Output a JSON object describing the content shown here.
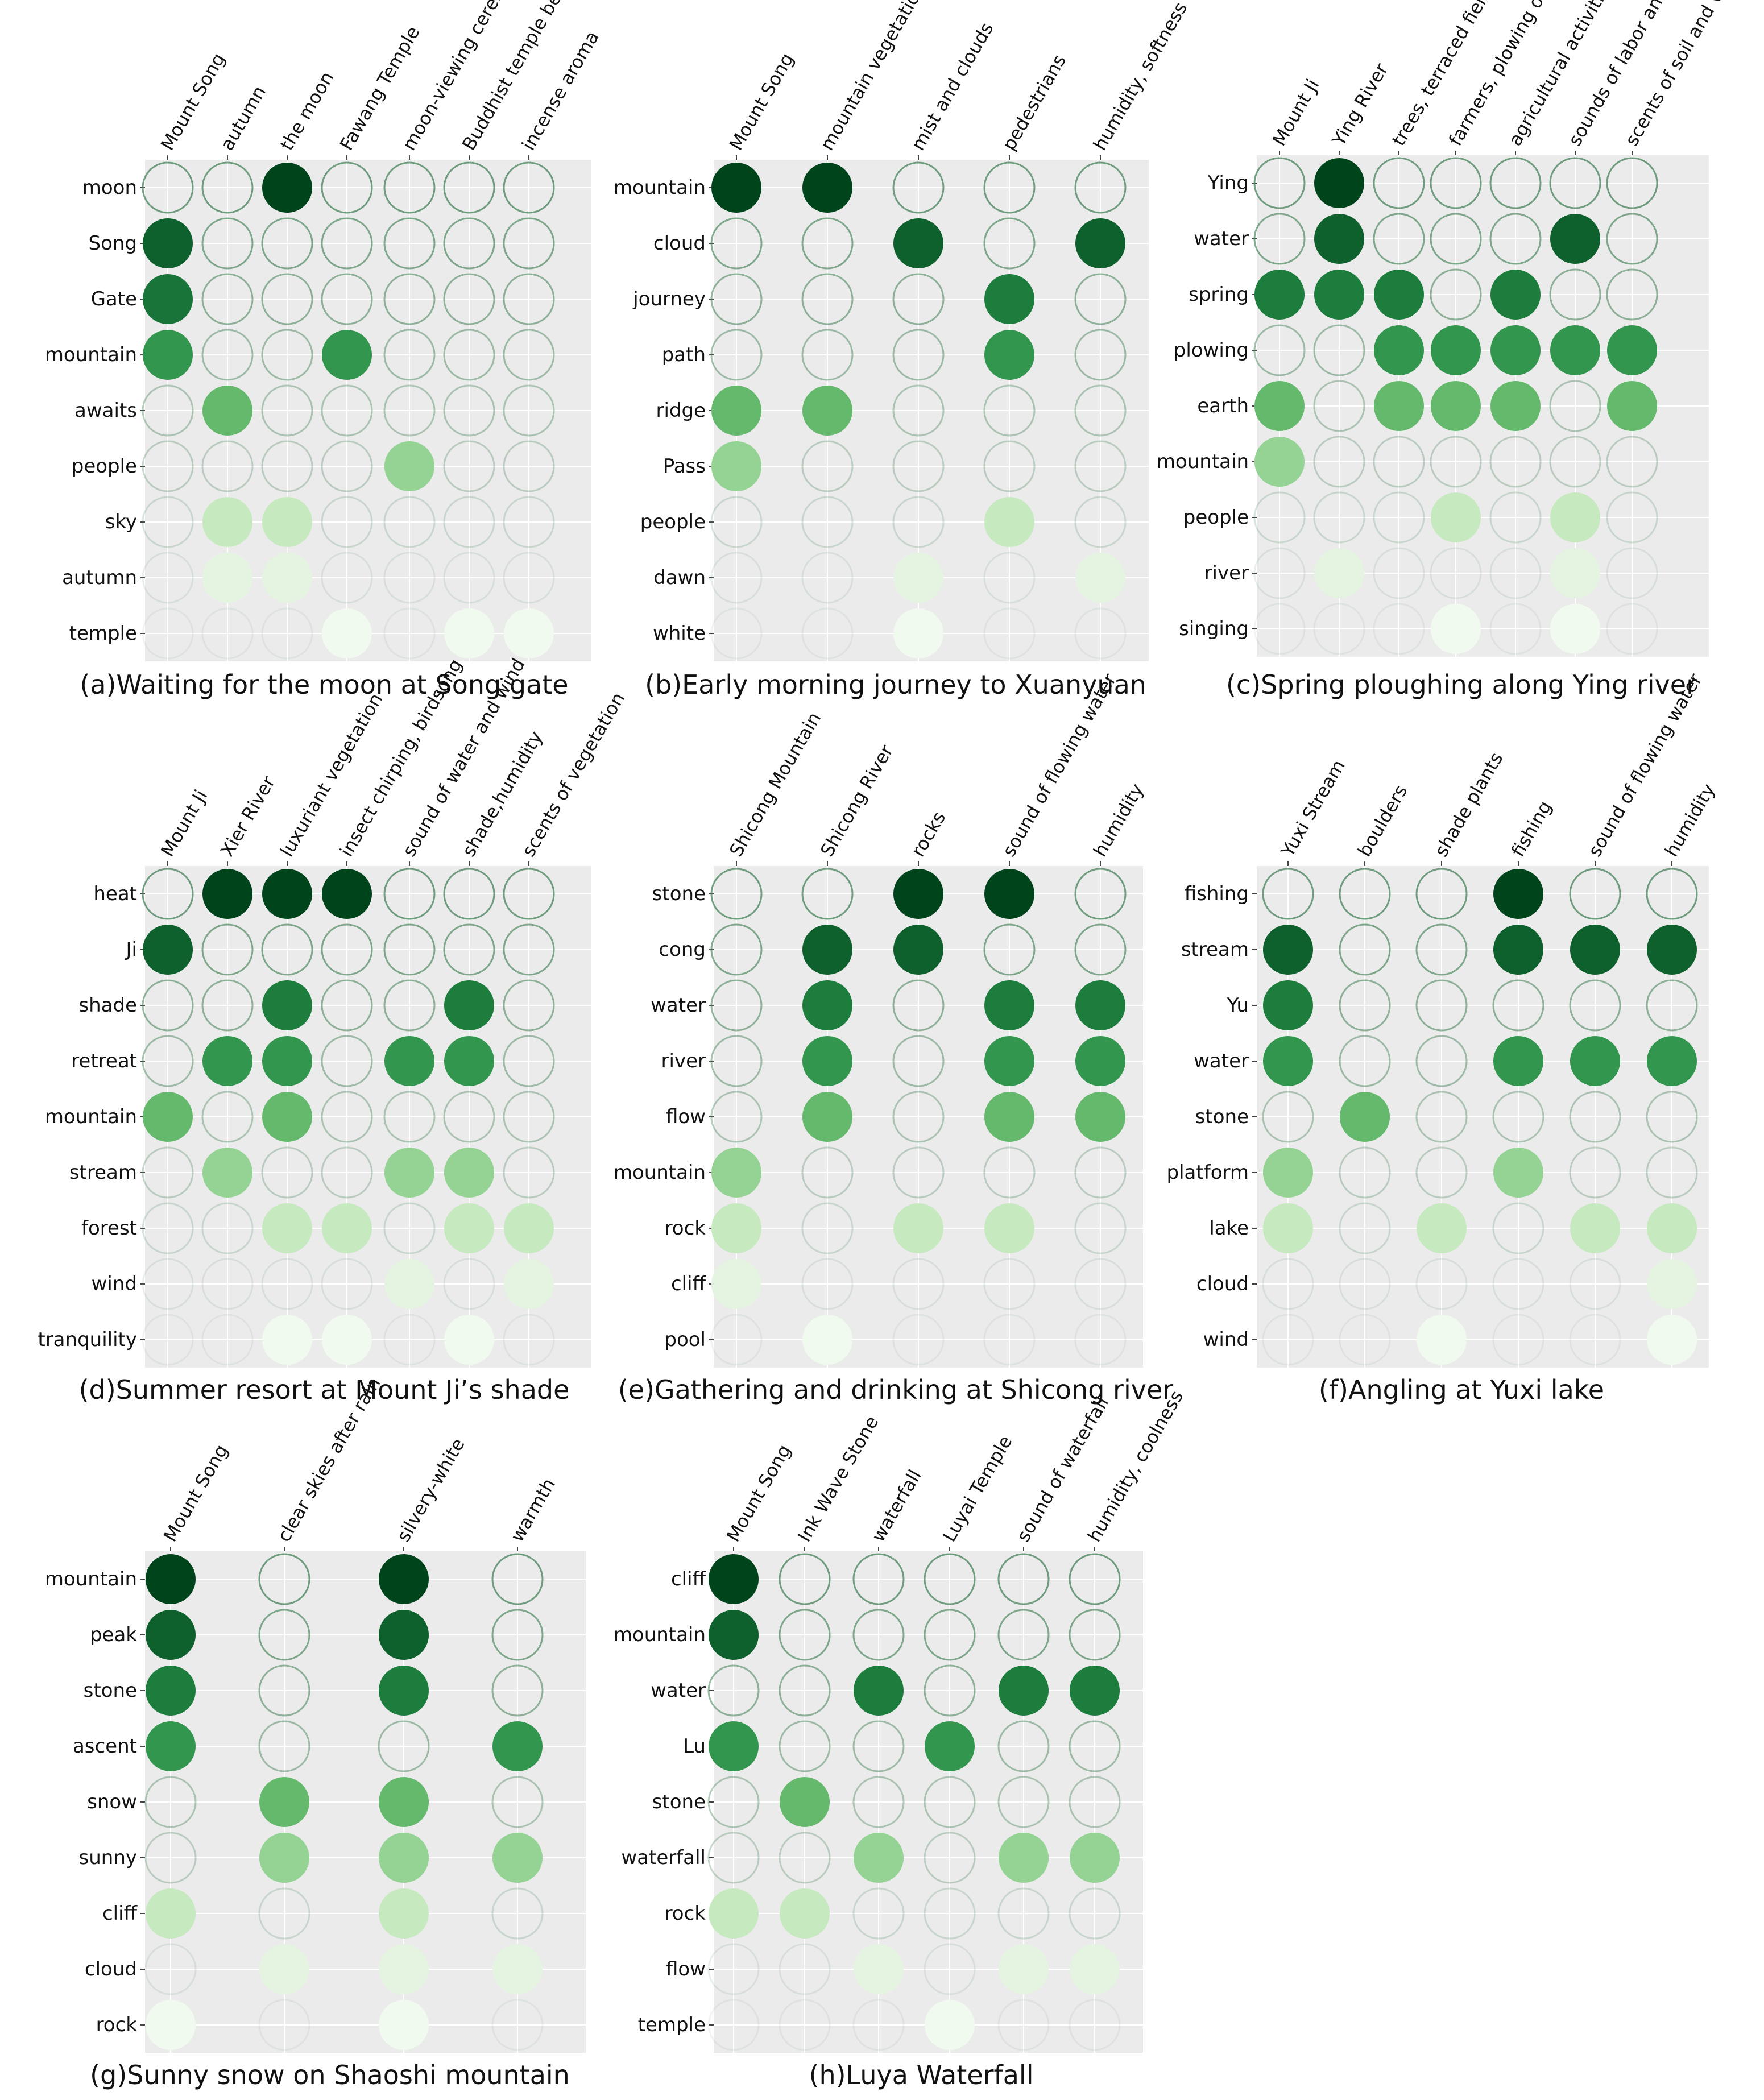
{
  "chart_data": [
    {
      "type": "heatmap",
      "title": "(a)Waiting for the moon at Song gate",
      "columns": [
        "Mount Song",
        "autumn",
        "the moon",
        "Fawang Temple",
        "moon-viewing ceremony",
        "Buddhist temple bell",
        "incense aroma"
      ],
      "rows": [
        "moon",
        "Song",
        "Gate",
        "mountain",
        "awaits",
        "people",
        "sky",
        "autumn",
        "temple"
      ],
      "values": [
        [
          0,
          0,
          1,
          0,
          0,
          0,
          0
        ],
        [
          0.9,
          0,
          0,
          0,
          0,
          0,
          0
        ],
        [
          0.83,
          0,
          0,
          0,
          0,
          0,
          0
        ],
        [
          0.7,
          0,
          0,
          0.7,
          0,
          0,
          0
        ],
        [
          0,
          0.55,
          0,
          0,
          0,
          0,
          0
        ],
        [
          0,
          0,
          0,
          0,
          0.4,
          0,
          0
        ],
        [
          0,
          0.25,
          0.25,
          0,
          0,
          0,
          0
        ],
        [
          0,
          0.1,
          0.1,
          0,
          0,
          0,
          0
        ],
        [
          0,
          0,
          0,
          0.03,
          0,
          0.03,
          0.03
        ]
      ]
    },
    {
      "type": "heatmap",
      "title": "(b)Early morning journey to Xuanyuan",
      "columns": [
        "Mount Song",
        "mountain vegetation",
        "mist and clouds",
        "pedestrians",
        "humidity, softness"
      ],
      "rows": [
        "mountain",
        "cloud",
        "journey",
        "path",
        "ridge",
        "Pass",
        "people",
        "dawn",
        "white"
      ],
      "values": [
        [
          1,
          1,
          0,
          0,
          0
        ],
        [
          0,
          0,
          0.9,
          0,
          0.9
        ],
        [
          0,
          0,
          0,
          0.8,
          0
        ],
        [
          0,
          0,
          0,
          0.7,
          0
        ],
        [
          0.55,
          0.55,
          0,
          0,
          0
        ],
        [
          0.4,
          0,
          0,
          0,
          0
        ],
        [
          0,
          0,
          0,
          0.25,
          0
        ],
        [
          0,
          0,
          0.1,
          0,
          0.1
        ],
        [
          0,
          0,
          0.03,
          0,
          0
        ]
      ]
    },
    {
      "type": "heatmap",
      "title": "(c)Spring ploughing along Ying river",
      "columns": [
        "Mount Ji",
        "Ying River",
        "trees, terraced fields",
        "farmers, plowing oxen",
        "agricultural activities",
        "sounds of labor and water",
        "scents of soil and vegetation"
      ],
      "rows": [
        "Ying",
        "water",
        "spring",
        "plowing",
        "earth",
        "mountain",
        "people",
        "river",
        "singing"
      ],
      "values": [
        [
          0,
          1,
          0,
          0,
          0,
          0,
          0
        ],
        [
          0,
          0.9,
          0,
          0,
          0,
          0.9,
          0
        ],
        [
          0.8,
          0.8,
          0.8,
          0,
          0.8,
          0,
          0
        ],
        [
          0,
          0,
          0.7,
          0.7,
          0.7,
          0.7,
          0.7
        ],
        [
          0.55,
          0,
          0.55,
          0.55,
          0.55,
          0,
          0.55
        ],
        [
          0.4,
          0,
          0,
          0,
          0,
          0,
          0
        ],
        [
          0,
          0,
          0,
          0.25,
          0,
          0.25,
          0
        ],
        [
          0,
          0.1,
          0,
          0,
          0,
          0.1,
          0
        ],
        [
          0,
          0,
          0,
          0.03,
          0,
          0.03,
          0
        ]
      ]
    },
    {
      "type": "heatmap",
      "title": "(d)Summer resort at Mount Ji’s shade",
      "columns": [
        "Mount Ji",
        "Xier River",
        "luxuriant vegetation",
        "insect chirping, birdsong",
        "sound of water and wind",
        "shade,humidity",
        "scents of vegetation"
      ],
      "rows": [
        "heat",
        "Ji",
        "shade",
        "retreat",
        "mountain",
        "stream",
        "forest",
        "wind",
        "tranquility"
      ],
      "values": [
        [
          0,
          1,
          1,
          1,
          0,
          0,
          0
        ],
        [
          0.9,
          0,
          0,
          0,
          0,
          0,
          0
        ],
        [
          0,
          0,
          0.8,
          0,
          0,
          0.8,
          0
        ],
        [
          0,
          0.7,
          0.7,
          0,
          0.7,
          0.7,
          0
        ],
        [
          0.55,
          0,
          0.55,
          0,
          0,
          0,
          0
        ],
        [
          0,
          0.4,
          0,
          0,
          0.4,
          0.4,
          0
        ],
        [
          0,
          0,
          0.25,
          0.25,
          0,
          0.25,
          0.25
        ],
        [
          0,
          0,
          0,
          0,
          0.1,
          0,
          0.1
        ],
        [
          0,
          0,
          0.03,
          0.03,
          0,
          0.03,
          0
        ]
      ]
    },
    {
      "type": "heatmap",
      "title": "(e)Gathering and drinking at Shicong river",
      "columns": [
        "Shicong Mountain",
        "Shicong River",
        "rocks",
        "sound of flowing water",
        "humidity"
      ],
      "rows": [
        "stone",
        "cong",
        "water",
        "river",
        "flow",
        "mountain",
        "rock",
        "cliff",
        "pool"
      ],
      "values": [
        [
          0,
          0,
          1,
          1,
          0
        ],
        [
          0,
          0.9,
          0.9,
          0,
          0
        ],
        [
          0,
          0.8,
          0,
          0.8,
          0.8
        ],
        [
          0,
          0.7,
          0,
          0.7,
          0.7
        ],
        [
          0,
          0.55,
          0,
          0.55,
          0.55
        ],
        [
          0.4,
          0,
          0,
          0,
          0
        ],
        [
          0.25,
          0,
          0.25,
          0.25,
          0
        ],
        [
          0.1,
          0,
          0,
          0,
          0
        ],
        [
          0,
          0.03,
          0,
          0,
          0
        ]
      ]
    },
    {
      "type": "heatmap",
      "title": "(f)Angling at Yuxi lake",
      "columns": [
        "Yuxi Stream",
        "boulders",
        "shade plants",
        "fishing",
        "sound of flowing water",
        "humidity"
      ],
      "rows": [
        "fishing",
        "stream",
        "Yu",
        "water",
        "stone",
        "platform",
        "lake",
        "cloud",
        "wind"
      ],
      "values": [
        [
          0,
          0,
          0,
          1,
          0,
          0
        ],
        [
          0.9,
          0,
          0,
          0.9,
          0.9,
          0.9
        ],
        [
          0.8,
          0,
          0,
          0,
          0,
          0
        ],
        [
          0.7,
          0,
          0,
          0.7,
          0.7,
          0.7
        ],
        [
          0,
          0.55,
          0,
          0,
          0,
          0
        ],
        [
          0.4,
          0,
          0,
          0.4,
          0,
          0
        ],
        [
          0.25,
          0,
          0.25,
          0,
          0.25,
          0.25
        ],
        [
          0,
          0,
          0,
          0,
          0,
          0.1
        ],
        [
          0,
          0,
          0.03,
          0,
          0,
          0.03
        ]
      ]
    },
    {
      "type": "heatmap",
      "title": "(g)Sunny snow on Shaoshi mountain",
      "columns": [
        "Mount Song",
        "clear skies after rain",
        "silvery-white",
        "warmth"
      ],
      "rows": [
        "mountain",
        "peak",
        "stone",
        "ascent",
        "snow",
        "sunny",
        "cliff",
        "cloud",
        "rock"
      ],
      "values": [
        [
          1,
          0,
          1,
          0
        ],
        [
          0.9,
          0,
          0.9,
          0
        ],
        [
          0.8,
          0,
          0.8,
          0
        ],
        [
          0.7,
          0,
          0,
          0.7
        ],
        [
          0,
          0.55,
          0.55,
          0
        ],
        [
          0,
          0.4,
          0.4,
          0.4
        ],
        [
          0.25,
          0,
          0.25,
          0
        ],
        [
          0,
          0.1,
          0.1,
          0.1
        ],
        [
          0.03,
          0,
          0.03,
          0
        ]
      ]
    },
    {
      "type": "heatmap",
      "title": "(h)Luya Waterfall",
      "columns": [
        "Mount Song",
        "Ink Wave Stone",
        "waterfall",
        "Luyai Temple",
        "sound of waterfall",
        "humidity, coolness"
      ],
      "rows": [
        "cliff",
        "mountain",
        "water",
        "Lu",
        "stone",
        "waterfall",
        "rock",
        "flow",
        "temple"
      ],
      "values": [
        [
          1,
          0,
          0,
          0,
          0,
          0
        ],
        [
          0.9,
          0,
          0,
          0,
          0,
          0
        ],
        [
          0,
          0,
          0.8,
          0,
          0.8,
          0.8
        ],
        [
          0.7,
          0,
          0,
          0.7,
          0,
          0
        ],
        [
          0,
          0.55,
          0,
          0,
          0,
          0
        ],
        [
          0,
          0,
          0.4,
          0,
          0.4,
          0.4
        ],
        [
          0.25,
          0.25,
          0,
          0,
          0,
          0
        ],
        [
          0,
          0,
          0.1,
          0,
          0.1,
          0.1
        ],
        [
          0,
          0,
          0,
          0.03,
          0,
          0
        ]
      ]
    }
  ]
}
